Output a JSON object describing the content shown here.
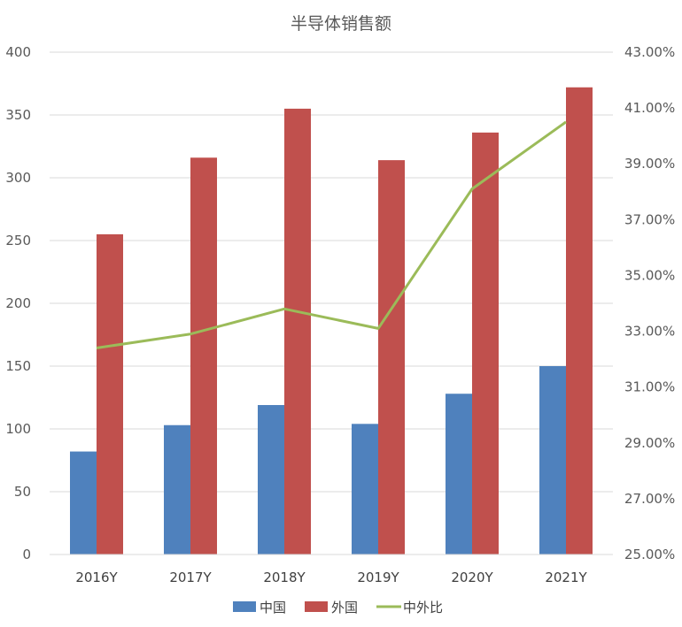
{
  "chart_data": {
    "type": "bar",
    "title": "半导体销售额",
    "categories": [
      "2016Y",
      "2017Y",
      "2018Y",
      "2019Y",
      "2020Y",
      "2021Y"
    ],
    "series": [
      {
        "name": "中国",
        "type": "bar",
        "axis": "left",
        "color": "#4F81BD",
        "values": [
          82,
          103,
          119,
          104,
          128,
          150
        ]
      },
      {
        "name": "外国",
        "type": "bar",
        "axis": "left",
        "color": "#C0504D",
        "values": [
          255,
          316,
          355,
          314,
          336,
          372
        ]
      },
      {
        "name": "中外比",
        "type": "line",
        "axis": "right",
        "color": "#9BBB59",
        "values": [
          32.4,
          32.9,
          33.8,
          33.1,
          38.1,
          40.5
        ]
      }
    ],
    "y_left": {
      "min": 0,
      "max": 400,
      "step": 50,
      "ticks": [
        "0",
        "50",
        "100",
        "150",
        "200",
        "250",
        "300",
        "350",
        "400"
      ]
    },
    "y_right": {
      "min": 25,
      "max": 43,
      "step": 2,
      "ticks": [
        "25.00%",
        "27.00%",
        "29.00%",
        "31.00%",
        "33.00%",
        "35.00%",
        "37.00%",
        "39.00%",
        "41.00%",
        "43.00%"
      ]
    },
    "grid": true,
    "legend_position": "bottom"
  }
}
